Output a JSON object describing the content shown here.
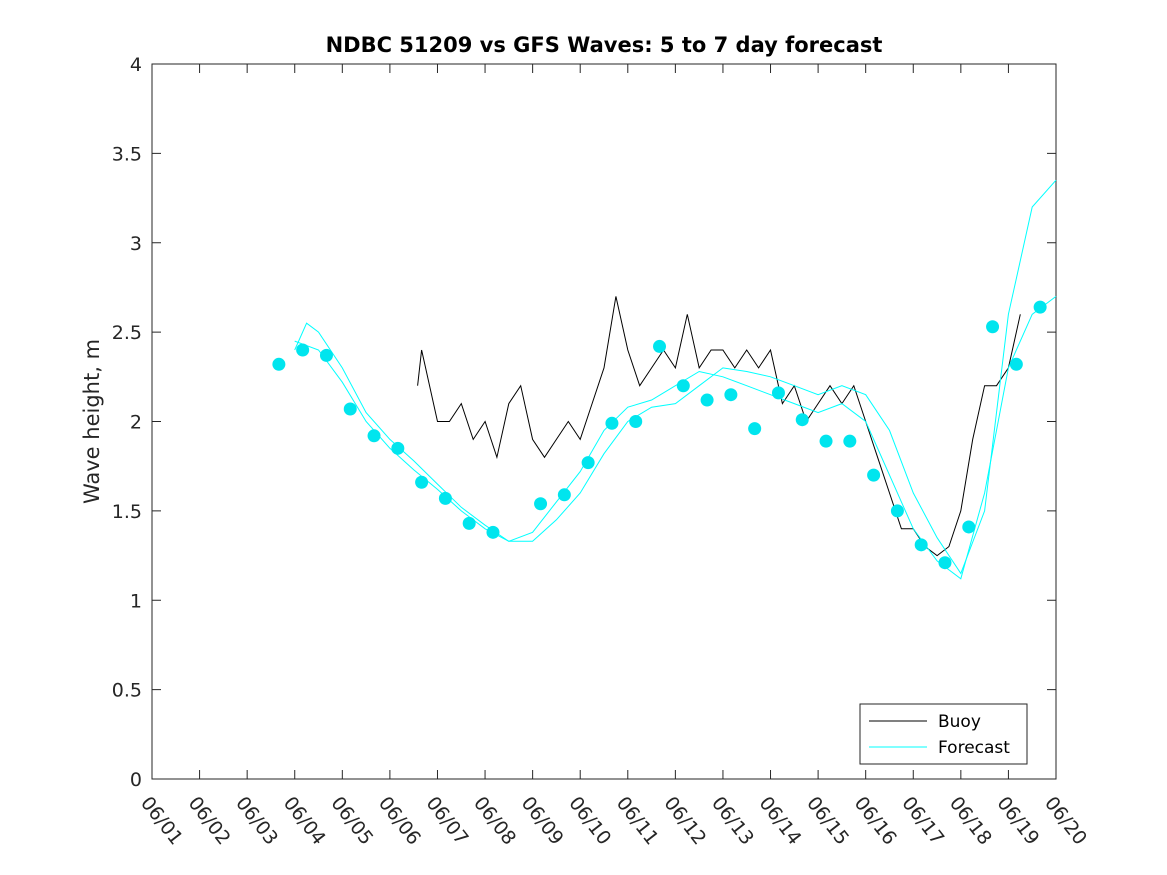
{
  "chart_data": {
    "type": "line",
    "title": "NDBC 51209 vs GFS Waves: 5 to 7 day forecast",
    "xlabel": "",
    "ylabel": "Wave height, m",
    "xlim": [
      "06/01",
      "06/20"
    ],
    "ylim": [
      0,
      4
    ],
    "x_ticks": [
      "06/01",
      "06/02",
      "06/03",
      "06/04",
      "06/05",
      "06/06",
      "06/07",
      "06/08",
      "06/09",
      "06/10",
      "06/11",
      "06/12",
      "06/13",
      "06/14",
      "06/15",
      "06/16",
      "06/17",
      "06/18",
      "06/19",
      "06/20"
    ],
    "y_ticks": [
      "0",
      "0.5",
      "1",
      "1.5",
      "2",
      "2.5",
      "3",
      "3.5",
      "4"
    ],
    "grid": false,
    "legend_position": "bottom-right",
    "legend": [
      "Buoy",
      "Forecast"
    ],
    "colors": {
      "buoy": "#000000",
      "forecast": "#00FFFF",
      "marker": "#00E5EE",
      "axis": "#262626"
    },
    "series": [
      {
        "name": "Buoy",
        "x": [
          "06/06 14:00",
          "06/06 16:00",
          "06/06 18:00",
          "06/07 00:00",
          "06/07 06:00",
          "06/07 12:00",
          "06/07 18:00",
          "06/08 00:00",
          "06/08 06:00",
          "06/08 12:00",
          "06/08 18:00",
          "06/09 00:00",
          "06/09 06:00",
          "06/09 12:00",
          "06/09 18:00",
          "06/10 00:00",
          "06/10 06:00",
          "06/10 12:00",
          "06/10 18:00",
          "06/11 00:00",
          "06/11 06:00",
          "06/11 12:00",
          "06/11 18:00",
          "06/12 00:00",
          "06/12 06:00",
          "06/12 12:00",
          "06/12 18:00",
          "06/13 00:00",
          "06/13 06:00",
          "06/13 12:00",
          "06/13 18:00",
          "06/14 00:00",
          "06/14 06:00",
          "06/14 12:00",
          "06/14 18:00",
          "06/15 00:00",
          "06/15 06:00",
          "06/15 12:00",
          "06/15 18:00",
          "06/16 00:00",
          "06/16 06:00",
          "06/16 12:00",
          "06/16 18:00",
          "06/17 00:00",
          "06/17 06:00",
          "06/17 12:00",
          "06/17 18:00",
          "06/18 00:00",
          "06/18 06:00",
          "06/18 12:00",
          "06/18 18:00",
          "06/19 00:00",
          "06/19 06:00"
        ],
        "y": [
          2.2,
          2.4,
          2.3,
          2.0,
          2.0,
          2.1,
          1.9,
          2.0,
          1.8,
          2.1,
          2.2,
          1.9,
          1.8,
          1.9,
          2.0,
          1.9,
          2.1,
          2.3,
          2.7,
          2.4,
          2.2,
          2.3,
          2.4,
          2.3,
          2.6,
          2.3,
          2.4,
          2.4,
          2.3,
          2.4,
          2.3,
          2.4,
          2.1,
          2.2,
          2.0,
          2.1,
          2.2,
          2.1,
          2.2,
          2.0,
          1.8,
          1.6,
          1.4,
          1.4,
          1.3,
          1.25,
          1.3,
          1.5,
          1.9,
          2.2,
          2.2,
          2.3,
          2.6
        ]
      },
      {
        "name": "Forecast",
        "x": [
          "06/04 00:00",
          "06/04 06:00",
          "06/04 12:00",
          "06/05 00:00",
          "06/05 12:00",
          "06/06 00:00",
          "06/06 12:00",
          "06/07 00:00",
          "06/07 12:00",
          "06/08 00:00",
          "06/08 12:00",
          "06/09 00:00",
          "06/09 12:00",
          "06/10 00:00",
          "06/10 12:00",
          "06/11 00:00",
          "06/11 12:00",
          "06/12 00:00",
          "06/12 12:00",
          "06/13 00:00",
          "06/13 12:00",
          "06/14 00:00",
          "06/14 12:00",
          "06/15 00:00",
          "06/15 12:00",
          "06/16 00:00",
          "06/16 12:00",
          "06/17 00:00",
          "06/17 12:00",
          "06/18 00:00",
          "06/18 12:00",
          "06/19 00:00",
          "06/19 12:00",
          "06/20 00:00"
        ],
        "y": [
          2.4,
          2.55,
          2.5,
          2.3,
          2.05,
          1.9,
          1.78,
          1.65,
          1.52,
          1.42,
          1.33,
          1.38,
          1.55,
          1.72,
          1.95,
          2.08,
          2.12,
          2.2,
          2.28,
          2.25,
          2.2,
          2.15,
          2.1,
          2.05,
          2.1,
          2.0,
          1.7,
          1.4,
          1.22,
          1.12,
          1.6,
          2.3,
          2.6,
          2.7
        ]
      },
      {
        "name": "Forecast",
        "x": [
          "06/04 00:00",
          "06/04 12:00",
          "06/05 00:00",
          "06/05 12:00",
          "06/06 00:00",
          "06/06 12:00",
          "06/07 00:00",
          "06/07 12:00",
          "06/08 00:00",
          "06/08 12:00",
          "06/09 00:00",
          "06/09 12:00",
          "06/10 00:00",
          "06/10 12:00",
          "06/11 00:00",
          "06/11 12:00",
          "06/12 00:00",
          "06/12 12:00",
          "06/13 00:00",
          "06/13 12:00",
          "06/14 00:00",
          "06/14 12:00",
          "06/15 00:00",
          "06/15 12:00",
          "06/16 00:00",
          "06/16 12:00",
          "06/17 00:00",
          "06/17 12:00",
          "06/18 00:00",
          "06/18 12:00",
          "06/19 00:00",
          "06/19 12:00",
          "06/20 00:00"
        ],
        "y": [
          2.45,
          2.4,
          2.22,
          2.0,
          1.85,
          1.73,
          1.62,
          1.5,
          1.4,
          1.33,
          1.33,
          1.45,
          1.6,
          1.82,
          2.0,
          2.08,
          2.1,
          2.2,
          2.3,
          2.28,
          2.25,
          2.2,
          2.15,
          2.2,
          2.15,
          1.95,
          1.6,
          1.35,
          1.15,
          1.5,
          2.6,
          3.2,
          3.35
        ]
      }
    ],
    "markers": {
      "name": "Forecast",
      "x": [
        "06/03 16:00",
        "06/04 04:00",
        "06/04 16:00",
        "06/05 04:00",
        "06/05 16:00",
        "06/06 04:00",
        "06/06 16:00",
        "06/07 04:00",
        "06/07 16:00",
        "06/08 04:00",
        "06/09 04:00",
        "06/09 16:00",
        "06/10 04:00",
        "06/10 16:00",
        "06/11 04:00",
        "06/11 16:00",
        "06/12 04:00",
        "06/12 16:00",
        "06/13 04:00",
        "06/13 16:00",
        "06/14 04:00",
        "06/14 16:00",
        "06/15 04:00",
        "06/15 16:00",
        "06/16 04:00",
        "06/16 16:00",
        "06/17 04:00",
        "06/17 16:00",
        "06/18 04:00",
        "06/18 16:00",
        "06/19 04:00",
        "06/19 16:00"
      ],
      "y": [
        2.32,
        2.4,
        2.37,
        2.07,
        1.92,
        1.85,
        1.66,
        1.57,
        1.43,
        1.38,
        1.54,
        1.59,
        1.77,
        1.99,
        2.0,
        2.42,
        2.2,
        2.12,
        2.15,
        1.96,
        2.16,
        2.01,
        1.89,
        1.89,
        1.7,
        1.5,
        1.31,
        1.21,
        1.41,
        2.53,
        2.32,
        2.64
      ]
    }
  }
}
